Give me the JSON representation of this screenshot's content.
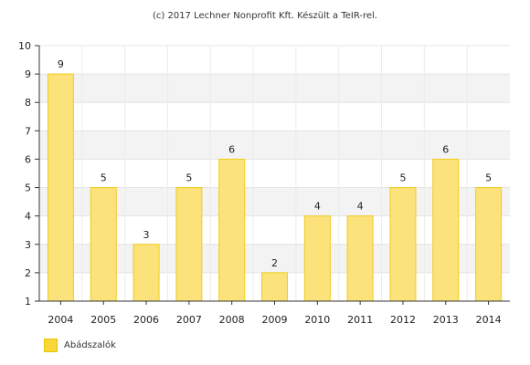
{
  "credit": "(c) 2017 Lechner Nonprofit Kft. Készült a TeIR-rel.",
  "chart_data": {
    "type": "bar",
    "categories": [
      "2004",
      "2005",
      "2006",
      "2007",
      "2008",
      "2009",
      "2010",
      "2011",
      "2012",
      "2013",
      "2014"
    ],
    "series": [
      {
        "name": "Abádszalók",
        "values": [
          9,
          5,
          3,
          5,
          6,
          2,
          4,
          4,
          5,
          6,
          5
        ]
      }
    ],
    "ylim": [
      1,
      10
    ],
    "yticks": [
      1,
      2,
      3,
      4,
      5,
      6,
      7,
      8,
      9,
      10
    ],
    "grid": true,
    "legend_position": "bottom-left",
    "colors": {
      "bar_fill": "#fbe27a",
      "bar_stroke": "#f2cc1a",
      "band": "#f3f3f3",
      "legend": "#f9d63a"
    }
  }
}
